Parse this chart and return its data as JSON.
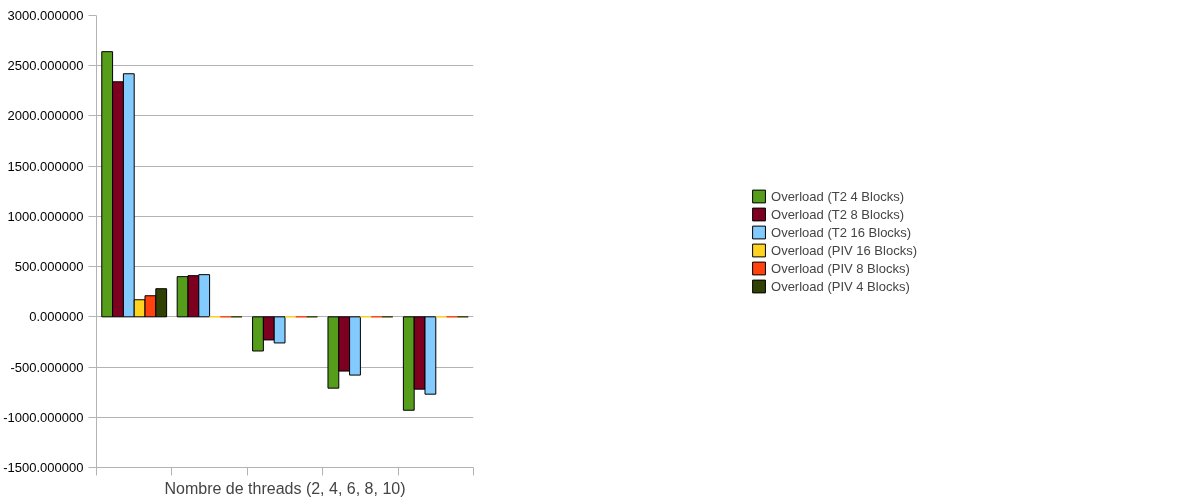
{
  "chart_data": {
    "type": "bar",
    "xlabel": "Nombre de threads (2, 4, 6, 8, 10)",
    "categories": [
      null,
      null,
      null,
      null,
      null
    ],
    "series": [
      {
        "name": "Overload (T2 4 Blocks)",
        "color": "#579d1c",
        "values": [
          2640,
          400,
          -340,
          -710,
          -930
        ]
      },
      {
        "name": "Overload (T2 8 Blocks)",
        "color": "#7e0021",
        "values": [
          2340,
          410,
          -230,
          -540,
          -720
        ]
      },
      {
        "name": "Overload (T2 16 Blocks)",
        "color": "#83caff",
        "values": [
          2420,
          420,
          -260,
          -580,
          -770
        ]
      },
      {
        "name": "Overload (PIV 16 Blocks)",
        "color": "#ffd320",
        "values": [
          170,
          0,
          0,
          0,
          0
        ]
      },
      {
        "name": "Overload (PIV 8 Blocks)",
        "color": "#ff420e",
        "values": [
          210,
          0,
          0,
          0,
          0
        ]
      },
      {
        "name": "Overload (PIV 4 Blocks)",
        "color": "#314004",
        "values": [
          280,
          0,
          0,
          0,
          0
        ]
      }
    ],
    "ylim": [
      -1500,
      3000
    ],
    "yticks": [
      {
        "value": -1500,
        "label": "-1500.000000"
      },
      {
        "value": -1000,
        "label": "-1000.000000"
      },
      {
        "value": -500,
        "label": "-500.000000"
      },
      {
        "value": 0,
        "label": "0.000000"
      },
      {
        "value": 500,
        "label": "500.000000"
      },
      {
        "value": 1000,
        "label": "1000.000000"
      },
      {
        "value": 1500,
        "label": "1500.000000"
      },
      {
        "value": 2000,
        "label": "2000.000000"
      },
      {
        "value": 2500,
        "label": "2500.000000"
      },
      {
        "value": 3000,
        "label": "3000.000000"
      }
    ],
    "grid": "y",
    "legend": "right"
  }
}
